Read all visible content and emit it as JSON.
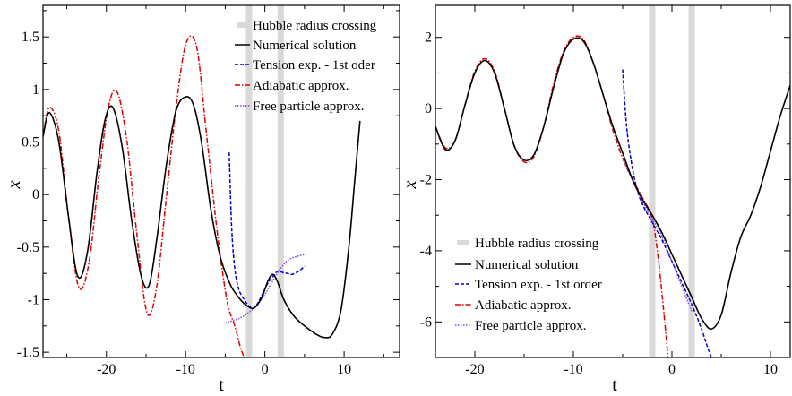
{
  "legend_labels": {
    "hubble": "Hubble radius crossing",
    "numerical": "Numerical solution",
    "tension": "Tension exp. - 1st oder",
    "tension_right": "Tension exp. - 1st order",
    "adiabatic": "Adiabatic approx.",
    "free": "Free particle approx."
  },
  "colors": {
    "numerical": "#000000",
    "tension": "#0000cc",
    "adiabatic": "#dd0000",
    "free": "#8844dd",
    "hubble": "#d9d9d9"
  },
  "chart_data": [
    {
      "type": "line",
      "xlabel": "t",
      "ylabel": "x",
      "xlim": [
        -28,
        17
      ],
      "ylim": [
        -1.55,
        1.8
      ],
      "xticks": [
        -20,
        -10,
        0,
        10
      ],
      "yticks": [
        -1.5,
        -1,
        -0.5,
        0,
        0.5,
        1,
        1.5
      ],
      "hubble_crossings": [
        -2,
        2
      ],
      "legend_position": "top-right",
      "series": [
        {
          "key": "numerical",
          "x": [
            -28,
            -27.2,
            -26,
            -24.8,
            -23.6,
            -22.4,
            -21.2,
            -20.2,
            -19.2,
            -18,
            -16.8,
            -15.6,
            -14.6,
            -13.6,
            -12.4,
            -11.2,
            -10,
            -9,
            -8,
            -6.8,
            -5.6,
            -4.4,
            -3.4,
            -2.4,
            -1.4,
            -0.4,
            0.4,
            1,
            1.6,
            2.4,
            3.6,
            5,
            6.5,
            7.5,
            8.5,
            9.6,
            10.6,
            11.3,
            12
          ],
          "y": [
            0.55,
            0.78,
            0.5,
            -0.2,
            -0.78,
            -0.55,
            0.2,
            0.7,
            0.83,
            0.45,
            -0.25,
            -0.78,
            -0.86,
            -0.4,
            0.3,
            0.8,
            0.93,
            0.85,
            0.5,
            -0.15,
            -0.6,
            -0.85,
            -0.97,
            -1.05,
            -1.08,
            -0.98,
            -0.82,
            -0.76,
            -0.83,
            -1.0,
            -1.15,
            -1.25,
            -1.33,
            -1.36,
            -1.33,
            -1.1,
            -0.5,
            0.1,
            0.7
          ]
        },
        {
          "key": "adiabatic",
          "x": [
            -28,
            -27.2,
            -26,
            -24.8,
            -23.5,
            -22.2,
            -20.9,
            -19.7,
            -18.6,
            -17.4,
            -16.2,
            -14.9,
            -13.7,
            -12.4,
            -11.1,
            -9.9,
            -8.6,
            -7.4,
            -6.1,
            -4.8,
            -3.8,
            -3.1,
            -2.6
          ],
          "y": [
            0.55,
            0.83,
            0.6,
            -0.2,
            -0.88,
            -0.65,
            0.2,
            0.85,
            0.97,
            0.5,
            -0.35,
            -1.12,
            -0.9,
            0.0,
            0.9,
            1.45,
            1.4,
            0.6,
            -0.3,
            -1.0,
            -1.25,
            -1.45,
            -1.55
          ]
        },
        {
          "key": "tension",
          "x": [
            -4.5,
            -4.2,
            -3.8,
            -3.3,
            -2.6,
            -2,
            -1.4,
            -0.8,
            -0.2,
            0.4,
            1,
            1.6,
            2.2,
            2.8,
            3.4,
            4,
            4.6,
            5
          ],
          "y": [
            0.4,
            -0.3,
            -0.7,
            -0.9,
            -1.0,
            -1.06,
            -1.08,
            -1.02,
            -0.93,
            -0.84,
            -0.78,
            -0.73,
            -0.74,
            -0.75,
            -0.76,
            -0.74,
            -0.71,
            -0.68
          ]
        },
        {
          "key": "free",
          "x": [
            -5,
            -4,
            -3,
            -2,
            -1,
            0,
            1,
            2,
            3,
            4,
            5
          ],
          "y": [
            -1.22,
            -1.2,
            -1.17,
            -1.12,
            -1.05,
            -0.95,
            -0.82,
            -0.7,
            -0.62,
            -0.59,
            -0.57
          ]
        }
      ]
    },
    {
      "type": "line",
      "xlabel": "t",
      "ylabel": "x",
      "xlim": [
        -24,
        12
      ],
      "ylim": [
        -7,
        2.9
      ],
      "xticks": [
        -20,
        -10,
        0,
        10
      ],
      "yticks": [
        -6,
        -4,
        -2,
        0,
        2
      ],
      "hubble_crossings": [
        -2,
        2
      ],
      "legend_position": "bottom-left",
      "series": [
        {
          "key": "numerical",
          "x": [
            -24,
            -23,
            -22,
            -21,
            -20,
            -19,
            -18,
            -17,
            -16,
            -15,
            -14,
            -13,
            -12,
            -11,
            -10,
            -9,
            -8,
            -7,
            -6,
            -5,
            -4,
            -3,
            -2,
            -1,
            0,
            1,
            2,
            3,
            4,
            5,
            6,
            7,
            8,
            9,
            10,
            11,
            12
          ],
          "y": [
            -0.5,
            -1.15,
            -0.9,
            0.1,
            1.0,
            1.35,
            1.0,
            0.0,
            -1.05,
            -1.45,
            -1.3,
            -0.5,
            0.6,
            1.55,
            1.95,
            1.9,
            1.3,
            0.4,
            -0.5,
            -1.25,
            -2.0,
            -2.55,
            -3.0,
            -3.5,
            -4.1,
            -4.7,
            -5.3,
            -5.9,
            -6.2,
            -5.8,
            -4.6,
            -3.6,
            -3.0,
            -2.2,
            -1.2,
            -0.2,
            0.65
          ]
        },
        {
          "key": "adiabatic",
          "x": [
            -24,
            -23,
            -22,
            -21,
            -20,
            -19,
            -18,
            -17,
            -16,
            -15,
            -14,
            -13,
            -12,
            -11,
            -10,
            -9,
            -8,
            -7,
            -6,
            -5,
            -4,
            -3,
            -2,
            -1.4,
            -0.8,
            -0.4
          ],
          "y": [
            -0.5,
            -1.1,
            -0.9,
            0.1,
            1.05,
            1.4,
            1.05,
            0.0,
            -1.05,
            -1.5,
            -1.35,
            -0.5,
            0.7,
            1.6,
            2.0,
            1.95,
            1.3,
            0.4,
            -0.6,
            -1.4,
            -2.0,
            -2.5,
            -3.1,
            -4.2,
            -5.8,
            -7.0
          ]
        },
        {
          "key": "tension",
          "x": [
            -5,
            -4.6,
            -4,
            -3.4,
            -2.8,
            -2.2,
            -1.6,
            -1,
            0,
            1,
            2,
            3,
            3.6,
            4
          ],
          "y": [
            1.1,
            -0.5,
            -1.7,
            -2.4,
            -2.8,
            -3.1,
            -3.4,
            -3.7,
            -4.3,
            -4.9,
            -5.5,
            -6.2,
            -6.7,
            -7.0
          ]
        },
        {
          "key": "free",
          "x": [
            -5,
            -4,
            -3,
            -2,
            -1,
            0,
            1,
            2
          ],
          "y": [
            -1.4,
            -2.0,
            -2.6,
            -3.1,
            -3.6,
            -4.3,
            -5.0,
            -5.7
          ]
        }
      ]
    }
  ]
}
